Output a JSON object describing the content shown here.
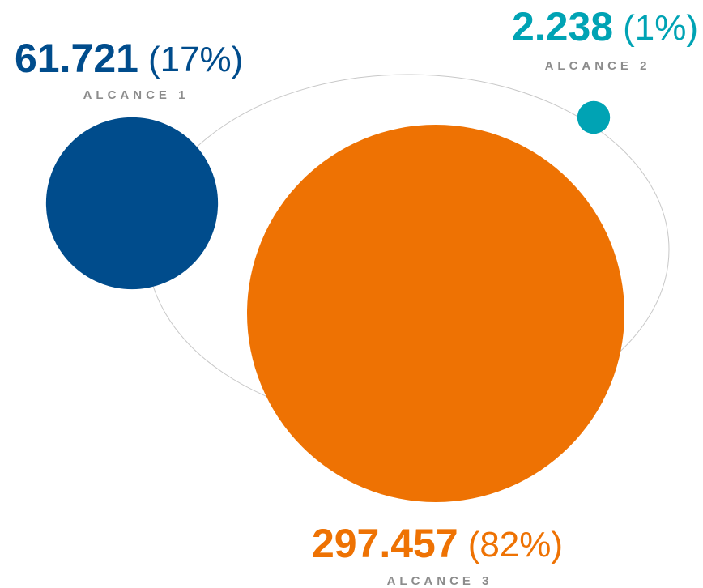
{
  "chart_data": {
    "type": "bubble",
    "categories": [
      "ALCANCE 1",
      "ALCANCE 2",
      "ALCANCE 3"
    ],
    "values": [
      61721,
      2238,
      297457
    ],
    "value_labels": [
      "61.721",
      "2.238",
      "297.457"
    ],
    "shares": [
      17,
      1,
      82
    ],
    "share_labels": [
      "(17%)",
      "(1%)",
      "(82%)"
    ],
    "colors": [
      "#004c8c",
      "#00a3b4",
      "#ee7203"
    ]
  }
}
